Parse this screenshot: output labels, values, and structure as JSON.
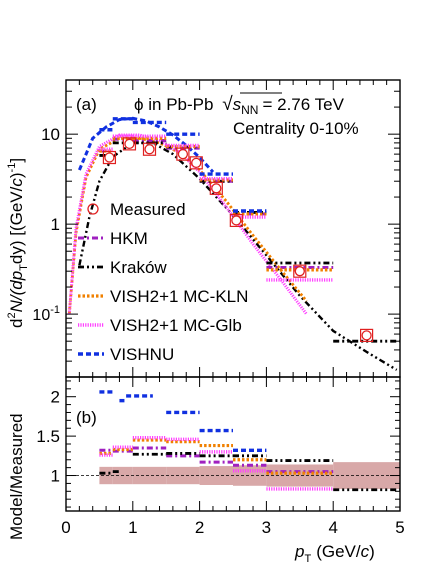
{
  "chart_data": [
    {
      "type": "scatter",
      "panel": "(a)",
      "annotation": "ϕ in Pb-Pb √s_NN = 2.76 TeV",
      "annotation_parts": {
        "pre": "ϕ in Pb-Pb",
        "s": "s",
        "sub": "NN",
        "post": "= 2.76 TeV"
      },
      "centrality": "Centrality 0-10%",
      "ylabel": "d²N/(dp_T dy) [(GeV/c)⁻¹]",
      "ylabel_parts": {
        "a": "d",
        "sup2": "2",
        "b": "N/(dp",
        "subT": "T",
        "c": "dy) [(GeV/",
        "cital": "c",
        "d": ")",
        "supm1": "-1",
        "e": "]"
      },
      "yscale": "log",
      "ylim": [
        0.02,
        40
      ],
      "y_ticks": [
        {
          "v": 0.1,
          "label": "10⁻¹",
          "base": "10",
          "exp": "-1"
        },
        {
          "v": 1,
          "label": "1"
        },
        {
          "v": 10,
          "label": "10"
        }
      ],
      "legend_position": "left-center",
      "series": [
        {
          "name": "Measured",
          "marker": "open-circle",
          "color": "#e02020",
          "x": [
            0.65,
            0.95,
            1.25,
            1.75,
            1.95,
            2.25,
            2.55,
            3.5,
            4.5
          ],
          "y": [
            5.5,
            7.8,
            6.8,
            6.0,
            4.8,
            2.5,
            1.1,
            0.3,
            0.058
          ]
        },
        {
          "name": "HKM",
          "line": "dash-dot",
          "color": "#a020c0",
          "steps": [
            [
              0.5,
              0.7,
              6.5
            ],
            [
              0.7,
              1.0,
              8.8
            ],
            [
              1.0,
              1.5,
              8.5
            ],
            [
              1.5,
              2.0,
              7.0
            ],
            [
              2.0,
              2.5,
              3.0
            ],
            [
              2.5,
              3.0,
              1.3
            ],
            [
              3.0,
              4.0,
              0.33
            ]
          ]
        },
        {
          "name": "Kraków",
          "line": "dash-dot-dot",
          "color": "#000000",
          "steps": [
            [
              0.5,
              0.7,
              5.8
            ],
            [
              0.7,
              1.0,
              8.0
            ],
            [
              1.0,
              1.5,
              8.0
            ],
            [
              1.5,
              2.0,
              7.2
            ],
            [
              2.0,
              2.5,
              3.0
            ],
            [
              2.5,
              3.0,
              1.35
            ],
            [
              3.0,
              4.0,
              0.37
            ],
            [
              4.0,
              5.0,
              0.05
            ]
          ],
          "curve_x": [
            0.2,
            0.35,
            0.5,
            0.7,
            1.0,
            1.3,
            1.6,
            2.0,
            2.5,
            3.0,
            3.5,
            4.0,
            4.5,
            4.95
          ],
          "curve_y": [
            0.35,
            1.2,
            3.0,
            5.6,
            8.0,
            8.0,
            6.0,
            3.2,
            1.25,
            0.45,
            0.16,
            0.065,
            0.038,
            0.024
          ]
        },
        {
          "name": "VISH2+1 MC-KLN",
          "line": "dotted",
          "color": "#f08000",
          "steps": [
            [
              0.5,
              0.7,
              6.5
            ],
            [
              0.7,
              1.0,
              9.0
            ],
            [
              1.0,
              1.5,
              9.0
            ],
            [
              1.5,
              2.0,
              7.3
            ],
            [
              2.0,
              2.5,
              3.1
            ],
            [
              2.5,
              3.0,
              1.3
            ],
            [
              3.0,
              4.0,
              0.31
            ]
          ],
          "curve_x": [
            0.05,
            0.15,
            0.3,
            0.5,
            0.8,
            1.1,
            1.4,
            1.7,
            2.0,
            2.4,
            2.8,
            3.2,
            3.6
          ],
          "curve_y": [
            0.1,
            0.8,
            3.3,
            6.8,
            9.0,
            9.0,
            8.0,
            6.2,
            4.0,
            1.8,
            0.75,
            0.32,
            0.14
          ]
        },
        {
          "name": "VISH2+1 MC-Glb",
          "line": "dotted-fine",
          "color": "#ff40ff",
          "steps": [
            [
              0.5,
              0.7,
              6.8
            ],
            [
              0.7,
              1.0,
              9.5
            ],
            [
              1.0,
              1.5,
              9.5
            ],
            [
              1.5,
              2.0,
              7.5
            ],
            [
              2.0,
              2.5,
              3.2
            ],
            [
              2.5,
              3.0,
              1.2
            ],
            [
              3.0,
              4.0,
              0.24
            ]
          ],
          "curve_x": [
            0.05,
            0.15,
            0.3,
            0.5,
            0.8,
            1.1,
            1.4,
            1.7,
            2.0,
            2.4,
            2.8,
            3.2,
            3.6
          ],
          "curve_y": [
            0.1,
            0.9,
            3.6,
            7.3,
            9.8,
            9.8,
            8.5,
            6.3,
            3.8,
            1.55,
            0.6,
            0.25,
            0.1
          ]
        },
        {
          "name": "VISHNU",
          "line": "dashed",
          "color": "#1030e0",
          "steps": [
            [
              0.5,
              0.7,
              11.2
            ],
            [
              0.7,
              1.0,
              14.8
            ],
            [
              1.0,
              1.5,
              13.5
            ],
            [
              1.5,
              2.0,
              10.0
            ],
            [
              2.0,
              2.5,
              3.6
            ],
            [
              2.5,
              3.0,
              1.4
            ]
          ],
          "curve_x": [
            0.2,
            0.4,
            0.6,
            0.8,
            1.0,
            1.2,
            1.4,
            1.6,
            1.8,
            2.0,
            2.2
          ],
          "curve_y": [
            4.0,
            9.0,
            12.0,
            14.5,
            15.0,
            14.0,
            12.0,
            9.8,
            7.5,
            5.5,
            3.8
          ]
        }
      ]
    },
    {
      "type": "scatter",
      "panel": "(b)",
      "ylabel": "Model/Measured",
      "xlabel": "p_T (GeV/c)",
      "xlabel_parts": {
        "p": "p",
        "sub": "T",
        "mid": "(GeV/",
        "c": "c",
        "end": ")"
      },
      "xlim": [
        0,
        5
      ],
      "ylim": [
        0.55,
        2.25
      ],
      "x_ticks": [
        "0",
        "1",
        "2",
        "3",
        "4",
        "5"
      ],
      "y_ticks": [
        "1",
        "1.5",
        "2"
      ],
      "reference_line": 1.0,
      "uncertainty_band": {
        "color": "#d8a8a8",
        "bins": [
          [
            0.5,
            0.7,
            0.11
          ],
          [
            0.7,
            1.0,
            0.11
          ],
          [
            1.0,
            1.5,
            0.11
          ],
          [
            1.5,
            2.0,
            0.11
          ],
          [
            2.0,
            2.5,
            0.12
          ],
          [
            2.5,
            3.0,
            0.13
          ],
          [
            3.0,
            4.0,
            0.14
          ],
          [
            4.0,
            5.0,
            0.17
          ]
        ]
      },
      "series": [
        {
          "name": "HKM",
          "color": "#a020c0",
          "steps": [
            [
              0.5,
              0.7,
              1.32
            ],
            [
              0.7,
              1.0,
              1.31
            ],
            [
              1.0,
              1.5,
              1.35
            ],
            [
              1.5,
              2.0,
              1.25
            ],
            [
              2.0,
              2.5,
              1.17
            ],
            [
              2.5,
              3.0,
              1.13
            ],
            [
              3.0,
              4.0,
              1.05
            ]
          ]
        },
        {
          "name": "Kraków",
          "color": "#000000",
          "steps": [
            [
              0.5,
              0.7,
              1.03
            ],
            [
              0.7,
              0.8,
              1.05
            ],
            [
              1.0,
              1.5,
              1.27
            ],
            [
              1.5,
              2.0,
              1.28
            ],
            [
              2.0,
              2.5,
              1.25
            ],
            [
              2.5,
              3.0,
              1.25
            ],
            [
              3.0,
              4.0,
              1.19
            ],
            [
              4.0,
              5.0,
              0.82
            ]
          ]
        },
        {
          "name": "VISH2+1 MC-KLN",
          "color": "#f08000",
          "steps": [
            [
              0.5,
              0.7,
              1.28
            ],
            [
              0.7,
              1.0,
              1.33
            ],
            [
              1.0,
              1.5,
              1.45
            ],
            [
              1.5,
              2.0,
              1.43
            ],
            [
              2.0,
              2.5,
              1.38
            ],
            [
              2.5,
              3.0,
              1.2
            ],
            [
              3.0,
              4.0,
              1.03
            ]
          ]
        },
        {
          "name": "VISH2+1 MC-Glb",
          "color": "#ff40ff",
          "steps": [
            [
              0.5,
              0.7,
              1.26
            ],
            [
              0.7,
              1.0,
              1.36
            ],
            [
              1.0,
              1.5,
              1.48
            ],
            [
              1.5,
              2.0,
              1.46
            ],
            [
              2.0,
              2.5,
              1.3
            ],
            [
              2.5,
              3.0,
              1.06
            ],
            [
              3.0,
              4.0,
              0.83
            ]
          ]
        },
        {
          "name": "VISHNU",
          "color": "#1030e0",
          "steps": [
            [
              0.5,
              0.7,
              2.06
            ],
            [
              0.8,
              0.9,
              1.95
            ],
            [
              0.9,
              1.3,
              2.01
            ],
            [
              1.5,
              2.0,
              1.8
            ],
            [
              2.0,
              2.5,
              1.57
            ],
            [
              2.5,
              3.0,
              1.32
            ]
          ]
        }
      ]
    }
  ]
}
